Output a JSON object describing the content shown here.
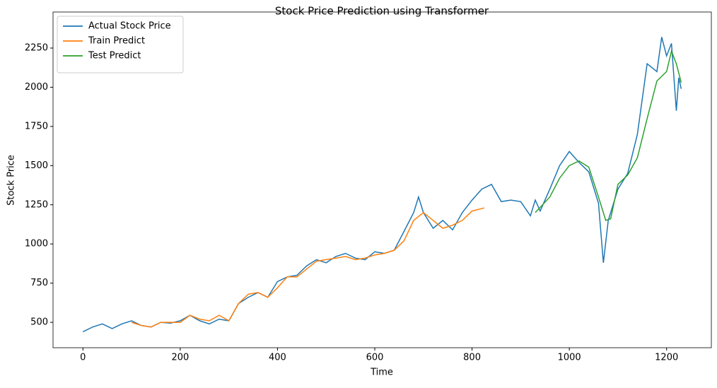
{
  "chart_data": {
    "type": "line",
    "title": "Stock Price Prediction using Transformer",
    "x_label": "Time",
    "y_label": "Stock Price",
    "xlim": [
      -61.5,
      1292
    ],
    "ylim": [
      338,
      2480
    ],
    "xticks": [
      0,
      200,
      400,
      600,
      800,
      1000,
      1200
    ],
    "yticks": [
      500,
      750,
      1000,
      1250,
      1500,
      1750,
      2000,
      2250
    ],
    "legend": "upper left",
    "series": [
      {
        "name": "Actual Stock Price",
        "color": "#1f77b4",
        "x": [
          0,
          20,
          40,
          60,
          80,
          100,
          120,
          140,
          160,
          180,
          200,
          220,
          240,
          260,
          280,
          300,
          320,
          340,
          360,
          380,
          400,
          420,
          440,
          460,
          480,
          500,
          520,
          540,
          560,
          580,
          600,
          620,
          640,
          660,
          680,
          690,
          700,
          720,
          740,
          760,
          780,
          800,
          820,
          840,
          860,
          880,
          900,
          920,
          930,
          940,
          960,
          980,
          1000,
          1020,
          1040,
          1060,
          1070,
          1080,
          1100,
          1120,
          1140,
          1160,
          1180,
          1190,
          1200,
          1210,
          1220,
          1225,
          1230
        ],
        "values": [
          440,
          470,
          490,
          460,
          490,
          510,
          480,
          470,
          500,
          495,
          510,
          545,
          510,
          490,
          520,
          510,
          620,
          660,
          690,
          660,
          760,
          790,
          800,
          860,
          900,
          880,
          920,
          940,
          910,
          900,
          950,
          940,
          960,
          1080,
          1200,
          1300,
          1200,
          1100,
          1150,
          1090,
          1200,
          1280,
          1350,
          1380,
          1270,
          1280,
          1270,
          1180,
          1280,
          1210,
          1350,
          1500,
          1590,
          1520,
          1460,
          1260,
          880,
          1150,
          1350,
          1450,
          1700,
          2150,
          2100,
          2320,
          2200,
          2280,
          1850,
          2060,
          1990
        ]
      },
      {
        "name": "Train Predict",
        "color": "#ff7f0e",
        "x": [
          100,
          120,
          140,
          160,
          180,
          200,
          220,
          240,
          260,
          280,
          300,
          320,
          340,
          360,
          380,
          400,
          420,
          440,
          460,
          480,
          500,
          520,
          540,
          560,
          580,
          600,
          620,
          640,
          660,
          680,
          700,
          720,
          740,
          760,
          780,
          800,
          825
        ],
        "values": [
          500,
          480,
          470,
          500,
          500,
          500,
          545,
          520,
          510,
          545,
          510,
          620,
          680,
          690,
          660,
          720,
          790,
          790,
          840,
          890,
          900,
          910,
          920,
          900,
          910,
          930,
          940,
          960,
          1020,
          1150,
          1200,
          1150,
          1100,
          1120,
          1150,
          1210,
          1230
        ]
      },
      {
        "name": "Test Predict",
        "color": "#2ca02c",
        "x": [
          930,
          960,
          980,
          1000,
          1020,
          1040,
          1060,
          1075,
          1085,
          1100,
          1120,
          1140,
          1160,
          1180,
          1200,
          1210,
          1220,
          1230
        ],
        "values": [
          1200,
          1300,
          1420,
          1500,
          1530,
          1490,
          1300,
          1150,
          1160,
          1380,
          1440,
          1550,
          1800,
          2040,
          2100,
          2230,
          2150,
          2030
        ]
      }
    ]
  }
}
